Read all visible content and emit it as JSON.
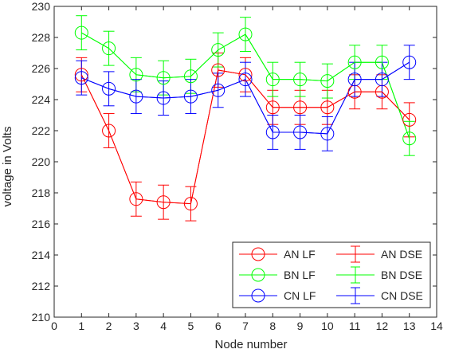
{
  "chart_data": {
    "type": "line",
    "title": "",
    "xlabel": "Node number",
    "ylabel": "voltage in Volts",
    "xlim": [
      0,
      14
    ],
    "ylim": [
      210,
      230
    ],
    "xticks": [
      0,
      1,
      2,
      3,
      4,
      5,
      6,
      7,
      8,
      9,
      10,
      11,
      12,
      13,
      14
    ],
    "yticks": [
      210,
      212,
      214,
      216,
      218,
      220,
      222,
      224,
      226,
      228,
      230
    ],
    "grid": false,
    "legend_position": "bottom-right",
    "x": [
      1,
      2,
      3,
      4,
      5,
      6,
      7,
      8,
      9,
      10,
      11,
      12,
      13
    ],
    "series": [
      {
        "name": "AN LF",
        "color": "#ff0000",
        "marker": "circle",
        "values": [
          225.6,
          222.0,
          217.6,
          217.4,
          217.3,
          225.9,
          225.6,
          223.5,
          223.5,
          223.5,
          224.5,
          224.5,
          222.7
        ]
      },
      {
        "name": "BN LF",
        "color": "#00ff00",
        "marker": "circle",
        "values": [
          228.3,
          227.3,
          225.6,
          225.4,
          225.5,
          227.2,
          228.2,
          225.3,
          225.3,
          225.2,
          226.4,
          226.4,
          221.5
        ]
      },
      {
        "name": "CN LF",
        "color": "#0000ff",
        "marker": "circle",
        "values": [
          225.4,
          224.7,
          224.2,
          224.1,
          224.2,
          224.6,
          225.3,
          221.9,
          221.9,
          221.8,
          225.3,
          225.3,
          226.4
        ]
      },
      {
        "name": "AN DSE",
        "color": "#ff0000",
        "marker": "errorbar",
        "values": [
          225.6,
          222.0,
          217.6,
          217.4,
          217.3,
          225.9,
          225.6,
          223.5,
          223.5,
          223.5,
          224.5,
          224.5,
          222.7
        ],
        "error": 1.1
      },
      {
        "name": "BN DSE",
        "color": "#00ff00",
        "marker": "errorbar",
        "values": [
          228.3,
          227.3,
          225.6,
          225.4,
          225.5,
          227.2,
          228.2,
          225.3,
          225.3,
          225.2,
          226.4,
          226.4,
          221.5
        ],
        "error": 1.1
      },
      {
        "name": "CN DSE",
        "color": "#0000ff",
        "marker": "errorbar",
        "values": [
          225.4,
          224.7,
          224.2,
          224.1,
          224.2,
          224.6,
          225.3,
          221.9,
          221.9,
          221.8,
          225.3,
          225.3,
          226.4
        ],
        "error": 1.1
      }
    ],
    "legend_order": [
      "AN LF",
      "AN DSE",
      "BN LF",
      "BN DSE",
      "CN LF",
      "CN DSE"
    ]
  }
}
